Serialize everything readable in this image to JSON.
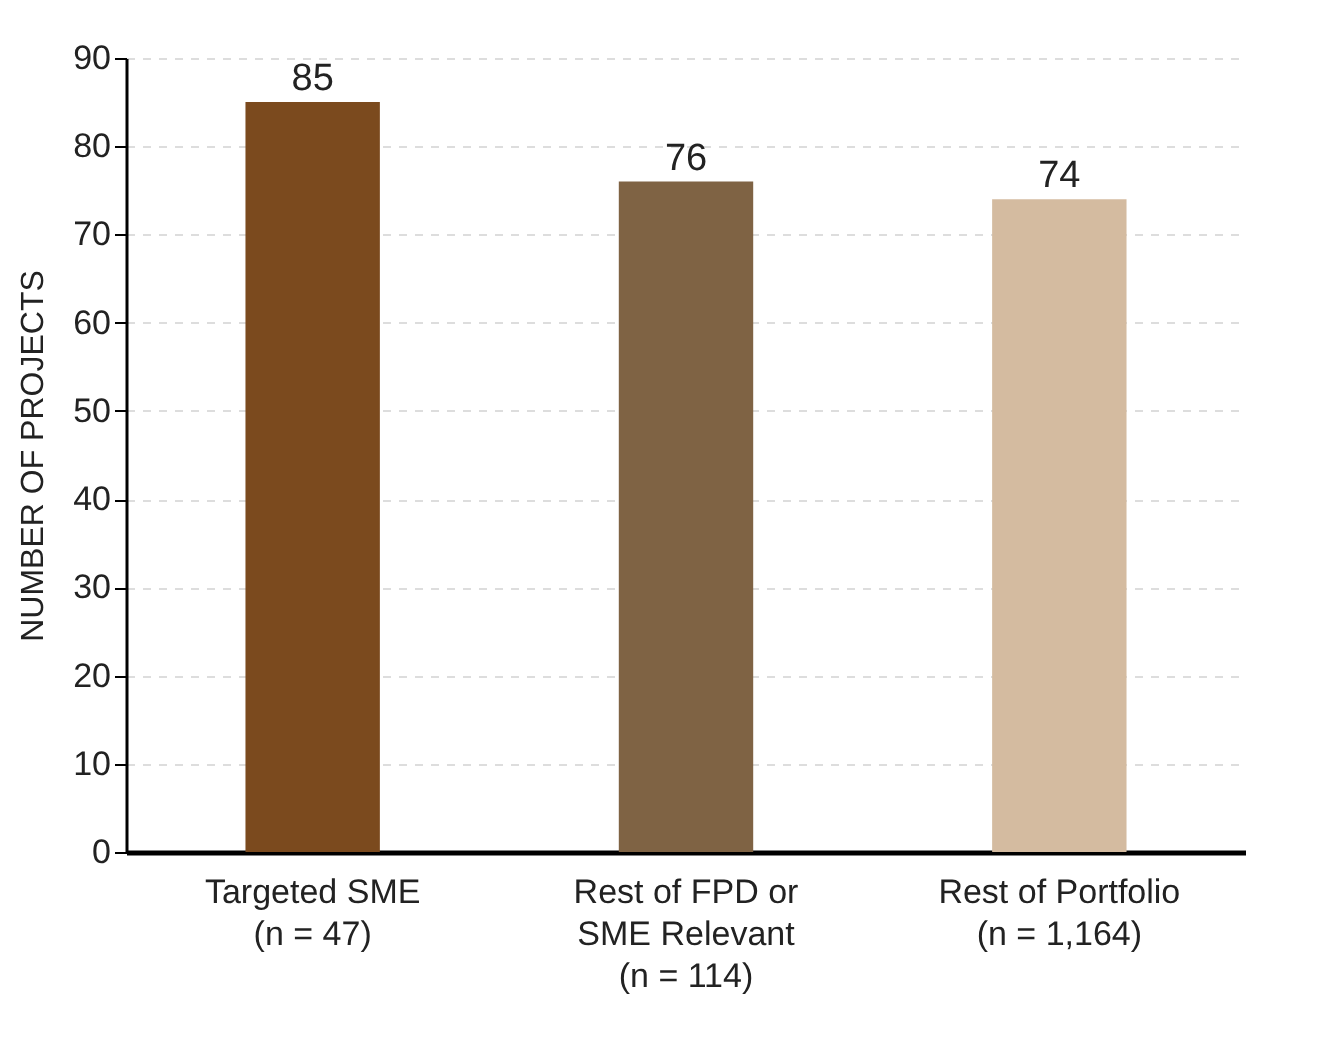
{
  "chart_data": {
    "type": "bar",
    "ylabel": "NUMBER OF PROJECTS",
    "categories": [
      "Targeted SME\n(n = 47)",
      "Rest of FPD or\nSME Relevant\n(n = 114)",
      "Rest of Portfolio\n(n = 1,164)"
    ],
    "values": [
      85,
      76,
      74
    ],
    "colors": [
      "#7b4a1e",
      "#7f6344",
      "#d4bba0"
    ],
    "ylim": [
      0,
      90
    ],
    "yticks": [
      0,
      10,
      20,
      30,
      40,
      50,
      60,
      70,
      80,
      90
    ],
    "grid": "y",
    "data_labels": true,
    "legend": false
  }
}
